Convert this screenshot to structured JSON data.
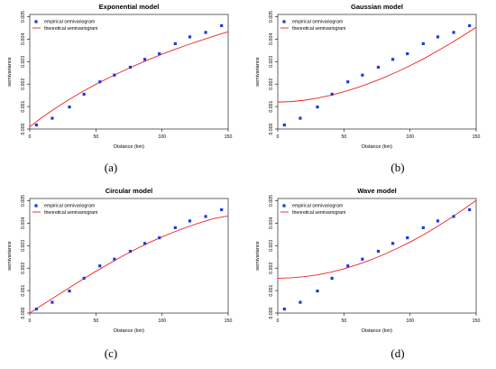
{
  "colors": {
    "empirical": "#1f3bd6",
    "theoretical": "#ee2222"
  },
  "chart_data": [
    {
      "type": "scatter",
      "title": "Exponential model",
      "caption": "(a)",
      "xlabel": "Distance (km)",
      "ylabel": "semivariance",
      "xlim": [
        0,
        150
      ],
      "ylim": [
        0,
        0.0051
      ],
      "xticks": [
        "0",
        "50",
        "100",
        "150"
      ],
      "yticks": [
        "0.000",
        "0.001",
        "0.002",
        "0.003",
        "0.004",
        "0.005"
      ],
      "legend_position": "top-left",
      "grid": false,
      "series": [
        {
          "name": "empirical semivariogram",
          "kind": "points",
          "x": [
            5,
            17,
            30,
            41,
            53,
            64,
            76,
            87,
            98,
            110,
            121,
            133,
            145
          ],
          "y": [
            0.00018,
            0.00048,
            0.00098,
            0.00155,
            0.0021,
            0.0024,
            0.00275,
            0.0031,
            0.00335,
            0.0038,
            0.0041,
            0.0043,
            0.0046
          ]
        },
        {
          "name": "theoretical semivariogram",
          "kind": "line",
          "x": [
            0,
            10,
            20,
            30,
            40,
            50,
            60,
            70,
            80,
            90,
            100,
            110,
            120,
            130,
            140,
            150
          ],
          "y": [
            0.0001,
            0.00055,
            0.00095,
            0.00132,
            0.00167,
            0.00199,
            0.00229,
            0.00257,
            0.00284,
            0.00309,
            0.00333,
            0.00355,
            0.00376,
            0.00396,
            0.00415,
            0.00433
          ]
        }
      ]
    },
    {
      "type": "scatter",
      "title": "Gaussian model",
      "caption": "(b)",
      "xlabel": "Distance (km)",
      "ylabel": "semivariance",
      "xlim": [
        0,
        150
      ],
      "ylim": [
        0,
        0.0051
      ],
      "xticks": [
        "0",
        "50",
        "100",
        "150"
      ],
      "yticks": [
        "0.000",
        "0.001",
        "0.002",
        "0.003",
        "0.004",
        "0.005"
      ],
      "legend_position": "top-left",
      "grid": false,
      "series": [
        {
          "name": "empirical semivariogram",
          "kind": "points",
          "x": [
            5,
            17,
            30,
            41,
            53,
            64,
            76,
            87,
            98,
            110,
            121,
            133,
            145
          ],
          "y": [
            0.00018,
            0.00048,
            0.00098,
            0.00155,
            0.0021,
            0.0024,
            0.00275,
            0.0031,
            0.00335,
            0.0038,
            0.0041,
            0.0043,
            0.0046
          ]
        },
        {
          "name": "theoretical semivariogram",
          "kind": "line",
          "x": [
            0,
            10,
            20,
            30,
            40,
            50,
            60,
            70,
            80,
            90,
            100,
            110,
            120,
            130,
            140,
            150
          ],
          "y": [
            0.0012,
            0.00122,
            0.00128,
            0.00138,
            0.0015,
            0.00166,
            0.00184,
            0.00205,
            0.00228,
            0.00254,
            0.00282,
            0.00312,
            0.00345,
            0.00379,
            0.00415,
            0.00453
          ]
        }
      ]
    },
    {
      "type": "scatter",
      "title": "Circular model",
      "caption": "(c)",
      "xlabel": "Distance (km)",
      "ylabel": "semivariance",
      "xlim": [
        0,
        150
      ],
      "ylim": [
        0,
        0.0051
      ],
      "xticks": [
        "0",
        "50",
        "100",
        "150"
      ],
      "yticks": [
        "0.000",
        "0.001",
        "0.002",
        "0.003",
        "0.004",
        "0.005"
      ],
      "legend_position": "top-left",
      "grid": false,
      "series": [
        {
          "name": "empirical semivariogram",
          "kind": "points",
          "x": [
            5,
            17,
            30,
            41,
            53,
            64,
            76,
            87,
            98,
            110,
            121,
            133,
            145
          ],
          "y": [
            0.00018,
            0.00048,
            0.00098,
            0.00155,
            0.0021,
            0.0024,
            0.00275,
            0.0031,
            0.00335,
            0.0038,
            0.0041,
            0.0043,
            0.0046
          ]
        },
        {
          "name": "theoretical semivariogram",
          "kind": "line",
          "x": [
            0,
            10,
            20,
            30,
            40,
            50,
            60,
            70,
            80,
            90,
            100,
            110,
            120,
            130,
            140,
            150
          ],
          "y": [
            0.0,
            0.00038,
            0.00076,
            0.00113,
            0.0015,
            0.00186,
            0.0022,
            0.00253,
            0.00284,
            0.00313,
            0.00339,
            0.00363,
            0.00385,
            0.00405,
            0.00422,
            0.00432
          ]
        }
      ]
    },
    {
      "type": "scatter",
      "title": "Wave model",
      "caption": "(d)",
      "xlabel": "Distance (km)",
      "ylabel": "semivariance",
      "xlim": [
        0,
        150
      ],
      "ylim": [
        0,
        0.0051
      ],
      "xticks": [
        "0",
        "50",
        "100",
        "150"
      ],
      "yticks": [
        "0.000",
        "0.001",
        "0.002",
        "0.003",
        "0.004",
        "0.005"
      ],
      "legend_position": "top-left",
      "grid": false,
      "series": [
        {
          "name": "empirical semivariogram",
          "kind": "points",
          "x": [
            5,
            17,
            30,
            41,
            53,
            64,
            76,
            87,
            98,
            110,
            121,
            133,
            145
          ],
          "y": [
            0.00018,
            0.00048,
            0.00098,
            0.00155,
            0.0021,
            0.0024,
            0.00275,
            0.0031,
            0.00335,
            0.0038,
            0.0041,
            0.0043,
            0.0046
          ]
        },
        {
          "name": "theoretical semivariogram",
          "kind": "line",
          "x": [
            0,
            10,
            20,
            30,
            40,
            50,
            60,
            70,
            80,
            90,
            100,
            110,
            120,
            130,
            140,
            150
          ],
          "y": [
            0.00155,
            0.00157,
            0.00162,
            0.0017,
            0.00182,
            0.00197,
            0.00215,
            0.00236,
            0.0026,
            0.00287,
            0.00316,
            0.00348,
            0.00383,
            0.0042,
            0.0046,
            0.00502
          ]
        }
      ]
    }
  ]
}
